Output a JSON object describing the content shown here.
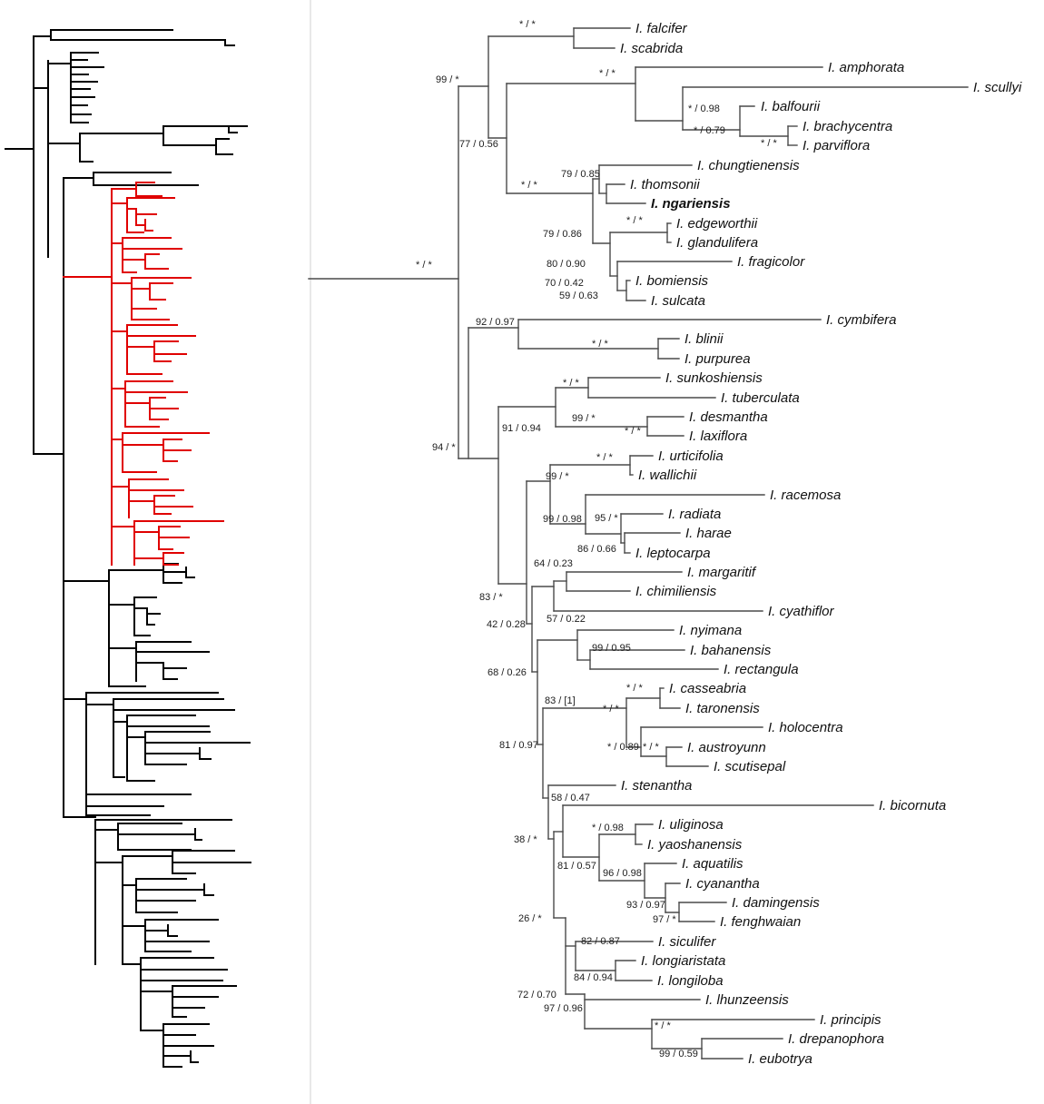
{
  "figure": {
    "description": "Two-panel phylogenetic tree; left overview tree with highlighted clade, right detail clade with support values",
    "colors": {
      "highlight": "#e00000",
      "overview_branch": "#000000",
      "detail_branch": "#4a4a4a",
      "divider": "#d0d0d0"
    },
    "taxa": [
      {
        "label": "I. falcifer",
        "highlight": false
      },
      {
        "label": "I. scabrida",
        "highlight": false
      },
      {
        "label": "I. amphorata",
        "highlight": false
      },
      {
        "label": "I. scullyi",
        "highlight": false
      },
      {
        "label": "I. balfourii",
        "highlight": false
      },
      {
        "label": "I. brachycentra",
        "highlight": false
      },
      {
        "label": "I. parviflora",
        "highlight": false
      },
      {
        "label": "I. chungtienensis",
        "highlight": false
      },
      {
        "label": "I. thomsonii",
        "highlight": false
      },
      {
        "label": "I. ngariensis",
        "highlight": true
      },
      {
        "label": "I. edgeworthii",
        "highlight": false
      },
      {
        "label": "I. glandulifera",
        "highlight": false
      },
      {
        "label": "I. fragicolor",
        "highlight": false
      },
      {
        "label": "I. bomiensis",
        "highlight": false
      },
      {
        "label": "I. sulcata",
        "highlight": false
      },
      {
        "label": "I. cymbifera",
        "highlight": false
      },
      {
        "label": "I. blinii",
        "highlight": false
      },
      {
        "label": "I. purpurea",
        "highlight": false
      },
      {
        "label": "I. sunkoshiensis",
        "highlight": false
      },
      {
        "label": "I. tuberculata",
        "highlight": false
      },
      {
        "label": "I. desmantha",
        "highlight": false
      },
      {
        "label": "I. laxiflora",
        "highlight": false
      },
      {
        "label": "I. urticifolia",
        "highlight": false
      },
      {
        "label": "I. wallichii",
        "highlight": false
      },
      {
        "label": "I. racemosa",
        "highlight": false
      },
      {
        "label": "I. radiata",
        "highlight": false
      },
      {
        "label": "I. harae",
        "highlight": false
      },
      {
        "label": "I. leptocarpa",
        "highlight": false
      },
      {
        "label": "I. margaritif",
        "highlight": false
      },
      {
        "label": "I. chimiliensis",
        "highlight": false
      },
      {
        "label": "I. cyathiflor",
        "highlight": false
      },
      {
        "label": "I. nyimana",
        "highlight": false
      },
      {
        "label": "I. bahanensis",
        "highlight": false
      },
      {
        "label": "I. rectangula",
        "highlight": false
      },
      {
        "label": "I. casseabria",
        "highlight": false
      },
      {
        "label": "I. taronensis",
        "highlight": false
      },
      {
        "label": "I. holocentra",
        "highlight": false
      },
      {
        "label": "I. austroyunn",
        "highlight": false
      },
      {
        "label": "I. scutisepal",
        "highlight": false
      },
      {
        "label": "I. stenantha",
        "highlight": false
      },
      {
        "label": "I. bicornuta",
        "highlight": false
      },
      {
        "label": "I. uliginosa",
        "highlight": false
      },
      {
        "label": "I. yaoshanensis",
        "highlight": false
      },
      {
        "label": "I. aquatilis",
        "highlight": false
      },
      {
        "label": "I. cyanantha",
        "highlight": false
      },
      {
        "label": "I. damingensis",
        "highlight": false
      },
      {
        "label": "I. fenghwaian",
        "highlight": false
      },
      {
        "label": "I. siculifer",
        "highlight": false
      },
      {
        "label": "I. longiaristata",
        "highlight": false
      },
      {
        "label": "I. longiloba",
        "highlight": false
      },
      {
        "label": "I. lhunzeensis",
        "highlight": false
      },
      {
        "label": "I. principis",
        "highlight": false
      },
      {
        "label": "I. drepanophora",
        "highlight": false
      },
      {
        "label": "I. eubotrya",
        "highlight": false
      }
    ],
    "supports": [
      {
        "label": "* / *"
      },
      {
        "label": "99 / *"
      },
      {
        "label": "* / *"
      },
      {
        "label": "* / 0.98"
      },
      {
        "label": "* / 0.79"
      },
      {
        "label": "* / *"
      },
      {
        "label": "77 / 0.56"
      },
      {
        "label": "* / *"
      },
      {
        "label": "79 / 0.85"
      },
      {
        "label": "79 / 0.86"
      },
      {
        "label": "* / *"
      },
      {
        "label": "80 / 0.90"
      },
      {
        "label": "70 / 0.42"
      },
      {
        "label": "59 / 0.63"
      },
      {
        "label": "92 / 0.97"
      },
      {
        "label": "* / *"
      },
      {
        "label": "94 / *"
      },
      {
        "label": "91 / 0.94"
      },
      {
        "label": "* / *"
      },
      {
        "label": "99 / *"
      },
      {
        "label": "* / *"
      },
      {
        "label": "* / *"
      },
      {
        "label": "99 / *"
      },
      {
        "label": "99 / 0.98"
      },
      {
        "label": "95 / *"
      },
      {
        "label": "86 / 0.66"
      },
      {
        "label": "64 / 0.23"
      },
      {
        "label": "83 / *"
      },
      {
        "label": "57 / 0.22"
      },
      {
        "label": "42 / 0.28"
      },
      {
        "label": "99 / 0.95"
      },
      {
        "label": "68 / 0.26"
      },
      {
        "label": "83 / [1]"
      },
      {
        "label": "* / *"
      },
      {
        "label": "* / *"
      },
      {
        "label": "* / 0.89"
      },
      {
        "label": "* / *"
      },
      {
        "label": "81 / 0.97"
      },
      {
        "label": "58 / 0.47"
      },
      {
        "label": "38 / *"
      },
      {
        "label": "* / 0.98"
      },
      {
        "label": "81 / 0.57"
      },
      {
        "label": "96 / 0.98"
      },
      {
        "label": "93 / 0.97"
      },
      {
        "label": "97 / *"
      },
      {
        "label": "26 / *"
      },
      {
        "label": "82 / 0.87"
      },
      {
        "label": "84 / 0.94"
      },
      {
        "label": "72 / 0.70"
      },
      {
        "label": "97 / 0.96"
      },
      {
        "label": "* / *"
      },
      {
        "label": "99 / 0.59"
      },
      {
        "label": "* / *"
      }
    ]
  }
}
